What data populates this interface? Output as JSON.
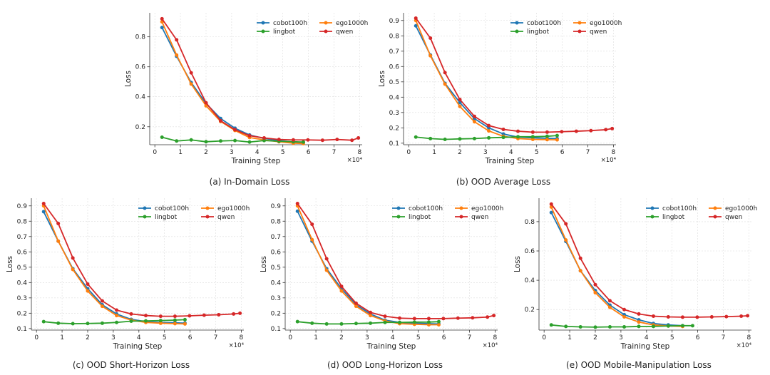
{
  "chart_data": [
    {
      "type": "line",
      "caption": "(a) In-Domain Loss",
      "xlabel": "Training Step",
      "ylabel": "Loss",
      "x_multiplier": "×10⁴",
      "xlim": [
        -0.2,
        8.1
      ],
      "ylim": [
        0.08,
        0.96
      ],
      "xticks": [
        0,
        1,
        2,
        3,
        4,
        5,
        6,
        7,
        8
      ],
      "yticks": [
        0.2,
        0.4,
        0.6,
        0.8
      ],
      "grid": true,
      "legend": "top-right",
      "series": [
        {
          "name": "cobot100h",
          "color": "#1f77b4",
          "x": [
            0.28,
            0.85,
            1.42,
            2.0,
            2.57,
            3.13,
            3.7,
            4.27,
            4.85,
            5.41,
            5.8
          ],
          "y": [
            0.862,
            0.67,
            0.495,
            0.355,
            0.255,
            0.19,
            0.145,
            0.122,
            0.108,
            0.098,
            0.095
          ]
        },
        {
          "name": "ego1000h",
          "color": "#ff7f0e",
          "x": [
            0.28,
            0.85,
            1.42,
            2.0,
            2.57,
            3.13,
            3.7,
            4.27,
            4.85,
            5.41,
            5.8
          ],
          "y": [
            0.9,
            0.678,
            0.485,
            0.34,
            0.235,
            0.175,
            0.128,
            0.112,
            0.1,
            0.09,
            0.088
          ]
        },
        {
          "name": "lingbot",
          "color": "#2ca02c",
          "x": [
            0.28,
            0.85,
            1.42,
            2.0,
            2.57,
            3.13,
            3.7,
            4.27,
            4.85,
            5.41,
            5.8
          ],
          "y": [
            0.13,
            0.105,
            0.112,
            0.1,
            0.105,
            0.108,
            0.098,
            0.108,
            0.103,
            0.1,
            0.098
          ]
        },
        {
          "name": "qwen",
          "color": "#d62728",
          "x": [
            0.28,
            0.85,
            1.42,
            2.0,
            2.57,
            3.13,
            3.7,
            4.27,
            4.85,
            5.41,
            5.98,
            6.55,
            7.12,
            7.7,
            7.95
          ],
          "y": [
            0.92,
            0.78,
            0.56,
            0.36,
            0.24,
            0.18,
            0.14,
            0.125,
            0.115,
            0.112,
            0.112,
            0.11,
            0.115,
            0.11,
            0.125
          ]
        }
      ]
    },
    {
      "type": "line",
      "caption": "(b) OOD Average Loss",
      "xlabel": "Training Step",
      "ylabel": "Loss",
      "x_multiplier": "×10⁴",
      "xlim": [
        -0.2,
        8.1
      ],
      "ylim": [
        0.09,
        0.95
      ],
      "xticks": [
        0,
        1,
        2,
        3,
        4,
        5,
        6,
        7,
        8
      ],
      "yticks": [
        0.1,
        0.2,
        0.3,
        0.4,
        0.5,
        0.6,
        0.7,
        0.8,
        0.9
      ],
      "grid": true,
      "legend": "top-right",
      "series": [
        {
          "name": "cobot100h",
          "color": "#1f77b4",
          "x": [
            0.28,
            0.85,
            1.42,
            2.0,
            2.57,
            3.13,
            3.7,
            4.27,
            4.85,
            5.41,
            5.8
          ],
          "y": [
            0.865,
            0.675,
            0.49,
            0.365,
            0.26,
            0.2,
            0.16,
            0.14,
            0.135,
            0.132,
            0.13
          ]
        },
        {
          "name": "ego1000h",
          "color": "#ff7f0e",
          "x": [
            0.28,
            0.85,
            1.42,
            2.0,
            2.57,
            3.13,
            3.7,
            4.27,
            4.85,
            5.41,
            5.8
          ],
          "y": [
            0.9,
            0.67,
            0.485,
            0.34,
            0.24,
            0.18,
            0.145,
            0.13,
            0.125,
            0.123,
            0.122
          ]
        },
        {
          "name": "lingbot",
          "color": "#2ca02c",
          "x": [
            0.28,
            0.85,
            1.42,
            2.0,
            2.57,
            3.13,
            3.7,
            4.27,
            4.85,
            5.41,
            5.8
          ],
          "y": [
            0.14,
            0.13,
            0.125,
            0.128,
            0.13,
            0.135,
            0.138,
            0.142,
            0.142,
            0.145,
            0.15
          ]
        },
        {
          "name": "qwen",
          "color": "#d62728",
          "x": [
            0.28,
            0.85,
            1.42,
            2.0,
            2.57,
            3.13,
            3.7,
            4.27,
            4.85,
            5.41,
            5.98,
            6.55,
            7.12,
            7.7,
            7.95
          ],
          "y": [
            0.915,
            0.785,
            0.56,
            0.385,
            0.275,
            0.215,
            0.19,
            0.178,
            0.172,
            0.172,
            0.175,
            0.178,
            0.182,
            0.188,
            0.195
          ]
        }
      ]
    },
    {
      "type": "line",
      "caption": "(c) OOD Short-Horizon Loss",
      "xlabel": "Training Step",
      "ylabel": "Loss",
      "x_multiplier": "×10⁴",
      "xlim": [
        -0.2,
        8.1
      ],
      "ylim": [
        0.09,
        0.95
      ],
      "xticks": [
        0,
        1,
        2,
        3,
        4,
        5,
        6,
        7,
        8
      ],
      "yticks": [
        0.1,
        0.2,
        0.3,
        0.4,
        0.5,
        0.6,
        0.7,
        0.8,
        0.9
      ],
      "grid": true,
      "legend": "top-right",
      "series": [
        {
          "name": "cobot100h",
          "color": "#1f77b4",
          "x": [
            0.28,
            0.85,
            1.42,
            2.0,
            2.57,
            3.13,
            3.7,
            4.27,
            4.85,
            5.41,
            5.8
          ],
          "y": [
            0.862,
            0.67,
            0.49,
            0.36,
            0.255,
            0.195,
            0.16,
            0.145,
            0.14,
            0.138,
            0.135
          ]
        },
        {
          "name": "ego1000h",
          "color": "#ff7f0e",
          "x": [
            0.28,
            0.85,
            1.42,
            2.0,
            2.57,
            3.13,
            3.7,
            4.27,
            4.85,
            5.41,
            5.8
          ],
          "y": [
            0.9,
            0.67,
            0.485,
            0.345,
            0.245,
            0.185,
            0.155,
            0.14,
            0.135,
            0.132,
            0.13
          ]
        },
        {
          "name": "lingbot",
          "color": "#2ca02c",
          "x": [
            0.28,
            0.85,
            1.42,
            2.0,
            2.57,
            3.13,
            3.7,
            4.27,
            4.85,
            5.41,
            5.8
          ],
          "y": [
            0.145,
            0.135,
            0.132,
            0.133,
            0.135,
            0.14,
            0.148,
            0.15,
            0.152,
            0.155,
            0.158
          ]
        },
        {
          "name": "qwen",
          "color": "#d62728",
          "x": [
            0.28,
            0.85,
            1.42,
            2.0,
            2.57,
            3.13,
            3.7,
            4.27,
            4.85,
            5.41,
            5.98,
            6.55,
            7.12,
            7.7,
            7.95
          ],
          "y": [
            0.915,
            0.785,
            0.56,
            0.39,
            0.28,
            0.22,
            0.195,
            0.185,
            0.18,
            0.18,
            0.183,
            0.187,
            0.19,
            0.195,
            0.2
          ]
        }
      ]
    },
    {
      "type": "line",
      "caption": "(d) OOD Long-Horizon Loss",
      "xlabel": "Training Step",
      "ylabel": "Loss",
      "x_multiplier": "×10⁴",
      "xlim": [
        -0.2,
        8.1
      ],
      "ylim": [
        0.09,
        0.95
      ],
      "xticks": [
        0,
        1,
        2,
        3,
        4,
        5,
        6,
        7,
        8
      ],
      "yticks": [
        0.1,
        0.2,
        0.3,
        0.4,
        0.5,
        0.6,
        0.7,
        0.8,
        0.9
      ],
      "grid": true,
      "legend": "top-right",
      "series": [
        {
          "name": "cobot100h",
          "color": "#1f77b4",
          "x": [
            0.28,
            0.85,
            1.42,
            2.0,
            2.57,
            3.13,
            3.7,
            4.27,
            4.85,
            5.41,
            5.8
          ],
          "y": [
            0.865,
            0.67,
            0.49,
            0.36,
            0.255,
            0.195,
            0.155,
            0.14,
            0.135,
            0.132,
            0.13
          ]
        },
        {
          "name": "ego1000h",
          "color": "#ff7f0e",
          "x": [
            0.28,
            0.85,
            1.42,
            2.0,
            2.57,
            3.13,
            3.7,
            4.27,
            4.85,
            5.41,
            5.8
          ],
          "y": [
            0.9,
            0.68,
            0.48,
            0.345,
            0.245,
            0.185,
            0.15,
            0.132,
            0.128,
            0.125,
            0.125
          ]
        },
        {
          "name": "lingbot",
          "color": "#2ca02c",
          "x": [
            0.28,
            0.85,
            1.42,
            2.0,
            2.57,
            3.13,
            3.7,
            4.27,
            4.85,
            5.41,
            5.8
          ],
          "y": [
            0.145,
            0.135,
            0.13,
            0.13,
            0.133,
            0.135,
            0.14,
            0.14,
            0.142,
            0.142,
            0.145
          ]
        },
        {
          "name": "qwen",
          "color": "#d62728",
          "x": [
            0.28,
            0.85,
            1.42,
            2.0,
            2.57,
            3.13,
            3.7,
            4.27,
            4.85,
            5.41,
            5.98,
            6.55,
            7.12,
            7.7,
            7.95
          ],
          "y": [
            0.915,
            0.78,
            0.555,
            0.375,
            0.265,
            0.205,
            0.18,
            0.168,
            0.165,
            0.165,
            0.165,
            0.168,
            0.17,
            0.175,
            0.185
          ]
        }
      ]
    },
    {
      "type": "line",
      "caption": "(e) OOD Mobile-Manipulation Loss",
      "xlabel": "Training Step",
      "ylabel": "Loss",
      "x_multiplier": "×10⁴",
      "xlim": [
        -0.2,
        8.1
      ],
      "ylim": [
        0.06,
        0.96
      ],
      "xticks": [
        0,
        1,
        2,
        3,
        4,
        5,
        6,
        7,
        8
      ],
      "yticks": [
        0.2,
        0.4,
        0.6,
        0.8
      ],
      "grid": true,
      "legend": "top-right",
      "series": [
        {
          "name": "cobot100h",
          "color": "#1f77b4",
          "x": [
            0.28,
            0.85,
            1.42,
            2.0,
            2.57,
            3.13,
            3.7,
            4.27,
            4.85,
            5.41
          ],
          "y": [
            0.862,
            0.665,
            0.465,
            0.33,
            0.23,
            0.165,
            0.13,
            0.105,
            0.095,
            0.09
          ]
        },
        {
          "name": "ego1000h",
          "color": "#ff7f0e",
          "x": [
            0.28,
            0.85,
            1.42,
            2.0,
            2.57,
            3.13,
            3.7,
            4.27,
            4.85,
            5.41
          ],
          "y": [
            0.9,
            0.675,
            0.465,
            0.315,
            0.215,
            0.15,
            0.115,
            0.095,
            0.088,
            0.085
          ]
        },
        {
          "name": "lingbot",
          "color": "#2ca02c",
          "x": [
            0.28,
            0.85,
            1.42,
            2.0,
            2.57,
            3.13,
            3.7,
            4.27,
            4.85,
            5.41,
            5.8
          ],
          "y": [
            0.095,
            0.085,
            0.082,
            0.08,
            0.082,
            0.082,
            0.085,
            0.085,
            0.088,
            0.09,
            0.09
          ]
        },
        {
          "name": "qwen",
          "color": "#d62728",
          "x": [
            0.28,
            0.85,
            1.42,
            2.0,
            2.57,
            3.13,
            3.7,
            4.27,
            4.85,
            5.41,
            5.98,
            6.55,
            7.12,
            7.7,
            7.95
          ],
          "y": [
            0.92,
            0.785,
            0.55,
            0.37,
            0.26,
            0.2,
            0.17,
            0.155,
            0.15,
            0.148,
            0.148,
            0.15,
            0.152,
            0.155,
            0.158
          ]
        }
      ]
    }
  ]
}
